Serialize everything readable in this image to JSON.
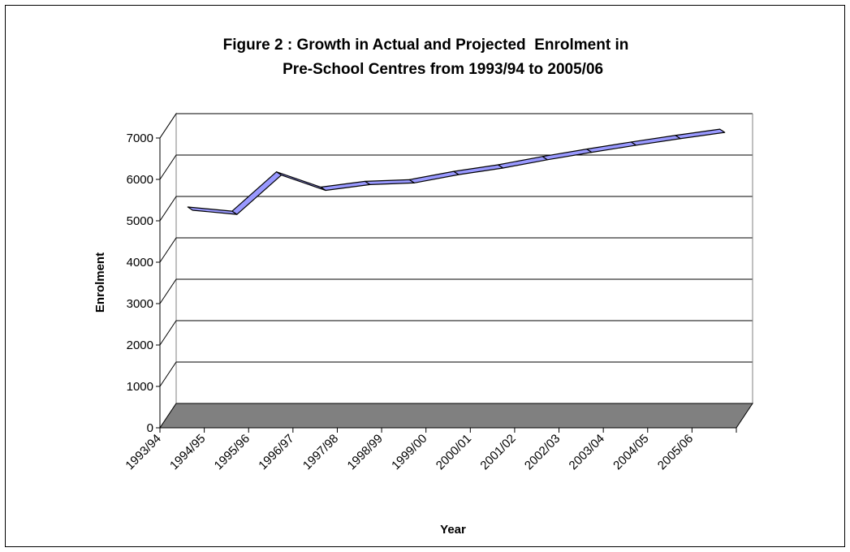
{
  "chart_data": {
    "type": "line",
    "title": [
      "Figure 2 : Growth in Actual and Projected  Enrolment in",
      "        Pre-School Centres from 1993/94 to 2005/06"
    ],
    "xlabel": "Year",
    "ylabel": "Enrolment",
    "categories": [
      "1993/94",
      "1994/95",
      "1995/96",
      "1996/97",
      "1997/98",
      "1998/99",
      "1999/00",
      "2000/01",
      "2001/02",
      "2002/03",
      "2003/04",
      "2004/05",
      "2005/06"
    ],
    "series": [
      {
        "values": [
          5000,
          4900,
          5850,
          5480,
          5620,
          5660,
          5860,
          6020,
          6220,
          6400,
          6570,
          6730,
          6880
        ]
      }
    ],
    "ylim": [
      0,
      7000
    ],
    "yticks": [
      0,
      1000,
      2000,
      3000,
      4000,
      5000,
      6000,
      7000
    ],
    "grid": true,
    "legend": "none",
    "colors": {
      "line_face": "#9999ff",
      "line_edge": "#000000",
      "floor": "#808080",
      "grid": "#000000"
    }
  }
}
